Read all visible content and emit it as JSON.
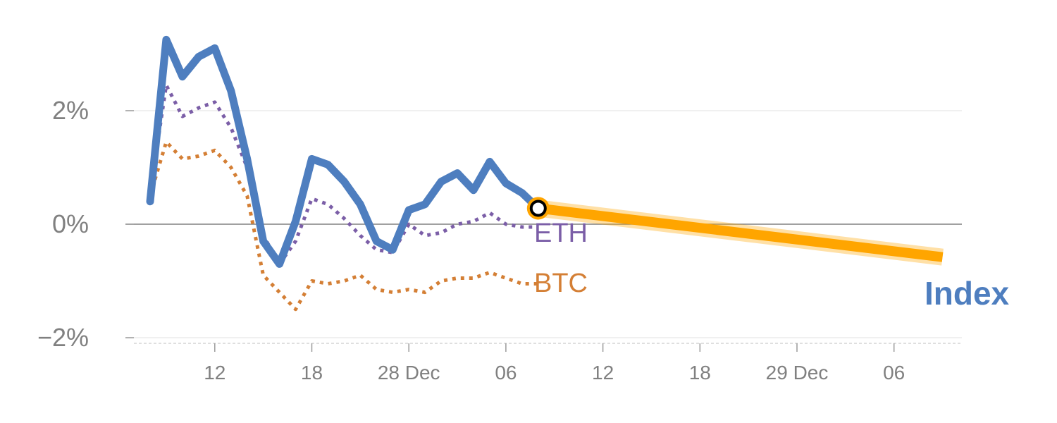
{
  "chart_data": {
    "type": "line",
    "title": "",
    "xlabel": "",
    "ylabel": "",
    "ylim": [
      -2.05,
      3.6
    ],
    "y_ticks": [
      {
        "value": 2,
        "label": "2%"
      },
      {
        "value": 0,
        "label": "0%"
      },
      {
        "value": -2,
        "label": "−2%"
      }
    ],
    "x_ticks": [
      {
        "x": 4,
        "label": "12"
      },
      {
        "x": 10,
        "label": "18"
      },
      {
        "x": 16,
        "label": "28 Dec"
      },
      {
        "x": 22,
        "label": "06"
      },
      {
        "x": 28,
        "label": "12"
      },
      {
        "x": 34,
        "label": "18"
      },
      {
        "x": 40,
        "label": "29 Dec"
      },
      {
        "x": 46,
        "label": "06"
      }
    ],
    "grid": "horizontal",
    "series": [
      {
        "name": "ETH",
        "color": "#7b5ea7",
        "style": "dotted",
        "x": [
          0,
          1,
          2,
          3,
          4,
          5,
          6,
          7,
          8,
          9,
          10,
          11,
          12,
          13,
          14,
          15,
          16,
          17,
          18,
          19,
          20,
          21,
          22,
          23,
          24
        ],
        "values": [
          0.55,
          2.45,
          1.9,
          2.05,
          2.15,
          1.7,
          1.0,
          -0.2,
          -0.7,
          -0.3,
          0.45,
          0.35,
          0.1,
          -0.2,
          -0.45,
          -0.5,
          0.0,
          -0.2,
          -0.15,
          0.0,
          0.05,
          0.2,
          0.0,
          -0.05,
          -0.05
        ]
      },
      {
        "name": "BTC",
        "color": "#d47f35",
        "style": "dotted",
        "x": [
          0,
          1,
          2,
          3,
          4,
          5,
          6,
          7,
          8,
          9,
          10,
          11,
          12,
          13,
          14,
          15,
          16,
          17,
          18,
          19,
          20,
          21,
          22,
          23,
          24
        ],
        "values": [
          0.5,
          1.45,
          1.15,
          1.2,
          1.3,
          1.0,
          0.5,
          -0.9,
          -1.2,
          -1.5,
          -1.0,
          -1.05,
          -1.0,
          -0.9,
          -1.15,
          -1.2,
          -1.15,
          -1.2,
          -1.0,
          -0.95,
          -0.95,
          -0.85,
          -0.95,
          -1.05,
          -1.05
        ]
      },
      {
        "name": "Index",
        "color": "#4e7ebf",
        "style": "solid",
        "x": [
          0,
          1,
          2,
          3,
          4,
          5,
          6,
          7,
          8,
          9,
          10,
          11,
          12,
          13,
          14,
          15,
          16,
          17,
          18,
          19,
          20,
          21,
          22,
          23,
          24
        ],
        "values": [
          0.4,
          3.25,
          2.6,
          2.95,
          3.1,
          2.35,
          1.15,
          -0.3,
          -0.7,
          0.05,
          1.15,
          1.05,
          0.75,
          0.35,
          -0.3,
          -0.45,
          0.25,
          0.35,
          0.75,
          0.9,
          0.6,
          1.1,
          0.72,
          0.55,
          0.28
        ]
      }
    ],
    "projection": {
      "series": "Index",
      "color": "#ffa500",
      "x_start": 24,
      "y_start": 0.28,
      "x_end": 49,
      "y_end": -0.58
    },
    "labels": {
      "eth": "ETH",
      "btc": "BTC",
      "index": "Index"
    },
    "colors": {
      "index": "#4e7ebf",
      "eth": "#7b5ea7",
      "btc": "#d47f35",
      "highlight": "#ffa500",
      "tick_label": "#808080",
      "grid": "#e6e6e6",
      "zero_line": "#808080"
    }
  }
}
